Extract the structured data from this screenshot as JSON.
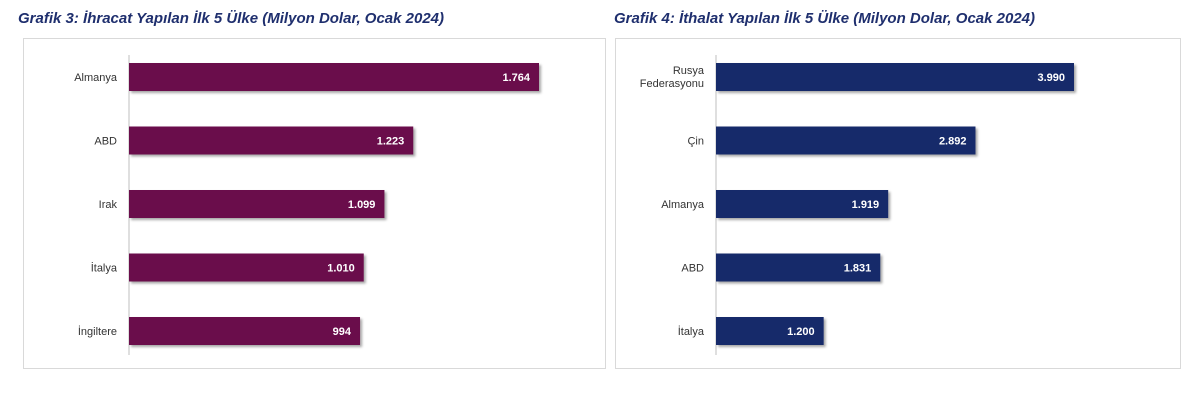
{
  "chart_data": [
    {
      "type": "bar",
      "orientation": "horizontal",
      "title": "Grafik 3:  İhracat Yapılan İlk 5 Ülke (Milyon Dolar, Ocak 2024)",
      "categories": [
        "Almanya",
        "ABD",
        "Irak",
        "İtalya",
        "İngiltere"
      ],
      "values": [
        1764,
        1223,
        1099,
        1010,
        994
      ],
      "value_labels": [
        "1.764",
        "1.223",
        "1.099",
        "1.010",
        "994"
      ],
      "bar_color": "#6b0f4c",
      "grid": false,
      "legend": "none"
    },
    {
      "type": "bar",
      "orientation": "horizontal",
      "title": "Grafik 4:  İthalat Yapılan İlk 5 Ülke (Milyon Dolar, Ocak 2024)",
      "categories": [
        [
          "Rusya",
          "Federasyonu"
        ],
        "Çin",
        "Almanya",
        "ABD",
        "İtalya"
      ],
      "values": [
        3990,
        2892,
        1919,
        1831,
        1200
      ],
      "value_labels": [
        "3.990",
        "2.892",
        "1.919",
        "1.831",
        "1.200"
      ],
      "bar_color": "#14296b",
      "grid": false,
      "legend": "none"
    }
  ]
}
